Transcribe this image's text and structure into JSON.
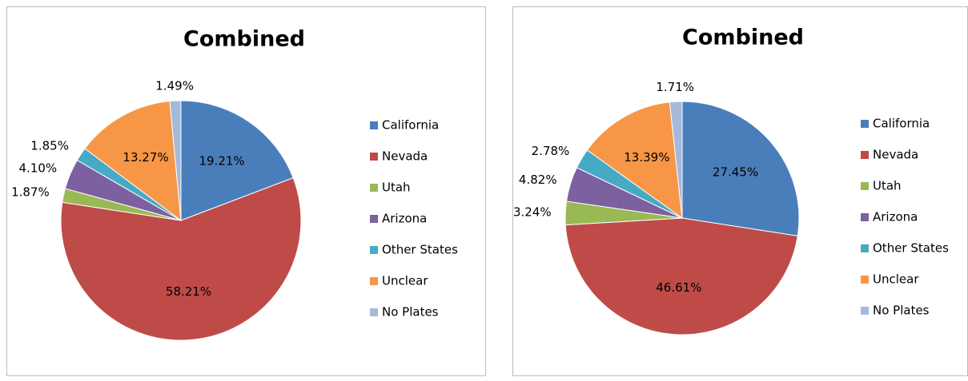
{
  "chart_data": [
    {
      "type": "pie",
      "title": "Combined",
      "categories": [
        "California",
        "Nevada",
        "Utah",
        "Arizona",
        "Other States",
        "Unclear",
        "No Plates"
      ],
      "values": [
        19.21,
        58.21,
        1.87,
        4.1,
        1.85,
        13.27,
        1.49
      ],
      "value_labels": [
        "19.21%",
        "58.21%",
        "1.87%",
        "4.10%",
        "1.85%",
        "13.27%",
        "1.49%"
      ],
      "colors": [
        "#4a7ebb",
        "#be4b48",
        "#98b954",
        "#7d60a0",
        "#46aac5",
        "#f79646",
        "#a5b9da"
      ]
    },
    {
      "type": "pie",
      "title": "Combined",
      "categories": [
        "California",
        "Nevada",
        "Utah",
        "Arizona",
        "Other States",
        "Unclear",
        "No Plates"
      ],
      "values": [
        27.45,
        46.61,
        3.24,
        4.82,
        2.78,
        13.39,
        1.71
      ],
      "value_labels": [
        "27.45%",
        "46.61%",
        "3.24%",
        "4.82%",
        "2.78%",
        "13.39%",
        "1.71%"
      ],
      "colors": [
        "#4a7ebb",
        "#be4b48",
        "#98b954",
        "#7d60a0",
        "#46aac5",
        "#f79646",
        "#a5b9da"
      ]
    }
  ]
}
